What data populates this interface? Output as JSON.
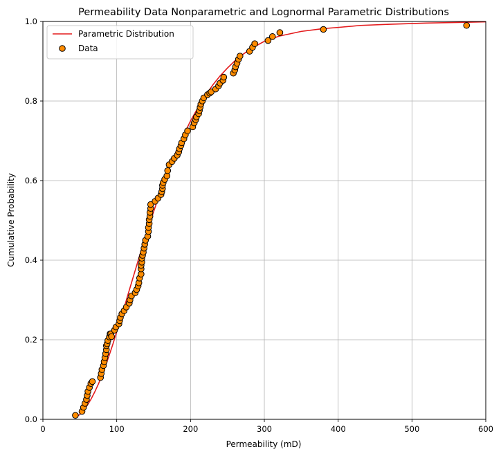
{
  "chart_data": {
    "type": "scatter",
    "title": "Permeability Data Nonparametric and Lognormal Parametric Distributions",
    "xlabel": "Permeability (mD)",
    "ylabel": "Cumulative Probability",
    "xlim": [
      0,
      600
    ],
    "ylim": [
      0,
      1
    ],
    "x_ticks": [
      0,
      100,
      200,
      300,
      400,
      500,
      600
    ],
    "y_ticks": [
      0.0,
      0.2,
      0.4,
      0.6,
      0.8,
      1.0
    ],
    "x_tick_labels": [
      "0",
      "100",
      "200",
      "300",
      "400",
      "500",
      "600"
    ],
    "y_tick_labels": [
      "0.0",
      "0.2",
      "0.4",
      "0.6",
      "0.8",
      "1.0"
    ],
    "grid": true,
    "legend_position": "top-left",
    "legend": [
      "Parametric Distribution",
      "Data"
    ],
    "series": [
      {
        "name": "Parametric Distribution",
        "kind": "line",
        "color": "#e41a1c",
        "x": [
          44,
          50,
          55,
          60,
          65,
          70,
          75,
          80,
          85,
          90,
          95,
          100,
          105,
          110,
          115,
          120,
          125,
          130,
          135,
          140,
          145,
          150,
          160,
          170,
          180,
          190,
          200,
          210,
          220,
          230,
          240,
          250,
          260,
          270,
          280,
          290,
          300,
          320,
          350,
          380,
          400,
          430,
          470,
          520,
          574,
          600
        ],
        "y": [
          0.005,
          0.012,
          0.022,
          0.035,
          0.05,
          0.068,
          0.088,
          0.11,
          0.135,
          0.162,
          0.19,
          0.22,
          0.25,
          0.28,
          0.312,
          0.343,
          0.374,
          0.405,
          0.435,
          0.465,
          0.494,
          0.522,
          0.576,
          0.625,
          0.671,
          0.712,
          0.75,
          0.783,
          0.813,
          0.84,
          0.863,
          0.883,
          0.901,
          0.916,
          0.929,
          0.94,
          0.95,
          0.963,
          0.975,
          0.982,
          0.985,
          0.99,
          0.993,
          0.996,
          0.998,
          0.999
        ]
      },
      {
        "name": "Data",
        "kind": "scatter",
        "color": "#ff8c00",
        "edgecolor": "#000000",
        "x": [
          44,
          53,
          55,
          57,
          59,
          60,
          61,
          63,
          65,
          67,
          78,
          79,
          80,
          82,
          83,
          84,
          85,
          86,
          86,
          87,
          88,
          90,
          91,
          92,
          93,
          97,
          99,
          103,
          104,
          105,
          107,
          110,
          113,
          117,
          118,
          120,
          125,
          127,
          129,
          130,
          131,
          133,
          133,
          133,
          134,
          134,
          135,
          136,
          137,
          138,
          139,
          142,
          143,
          143,
          144,
          144,
          145,
          145,
          146,
          146,
          152,
          156,
          160,
          161,
          162,
          162,
          163,
          165,
          168,
          169,
          171,
          175,
          178,
          182,
          184,
          185,
          187,
          188,
          191,
          193,
          196,
          203,
          205,
          207,
          208,
          211,
          212,
          213,
          214,
          216,
          218,
          223,
          226,
          228,
          234,
          238,
          240,
          244,
          245,
          258,
          260,
          261,
          263,
          265,
          267,
          280,
          284,
          287,
          305,
          311,
          321,
          380,
          574
        ],
        "y": [
          0.01,
          0.02,
          0.03,
          0.04,
          0.05,
          0.06,
          0.07,
          0.08,
          0.09,
          0.095,
          0.105,
          0.115,
          0.125,
          0.135,
          0.145,
          0.155,
          0.165,
          0.175,
          0.185,
          0.19,
          0.198,
          0.207,
          0.215,
          0.215,
          0.208,
          0.224,
          0.232,
          0.24,
          0.248,
          0.256,
          0.265,
          0.273,
          0.282,
          0.292,
          0.3,
          0.31,
          0.318,
          0.326,
          0.335,
          0.343,
          0.355,
          0.365,
          0.378,
          0.387,
          0.395,
          0.405,
          0.412,
          0.42,
          0.43,
          0.44,
          0.45,
          0.46,
          0.472,
          0.482,
          0.492,
          0.502,
          0.51,
          0.52,
          0.53,
          0.54,
          0.548,
          0.556,
          0.565,
          0.572,
          0.58,
          0.588,
          0.595,
          0.603,
          0.612,
          0.625,
          0.64,
          0.648,
          0.656,
          0.664,
          0.672,
          0.68,
          0.688,
          0.695,
          0.705,
          0.715,
          0.725,
          0.735,
          0.745,
          0.753,
          0.76,
          0.768,
          0.776,
          0.784,
          0.792,
          0.8,
          0.808,
          0.816,
          0.82,
          0.823,
          0.83,
          0.838,
          0.845,
          0.852,
          0.86,
          0.87,
          0.878,
          0.886,
          0.895,
          0.905,
          0.913,
          0.925,
          0.935,
          0.944,
          0.952,
          0.962,
          0.972,
          0.98,
          0.99
        ]
      }
    ]
  }
}
